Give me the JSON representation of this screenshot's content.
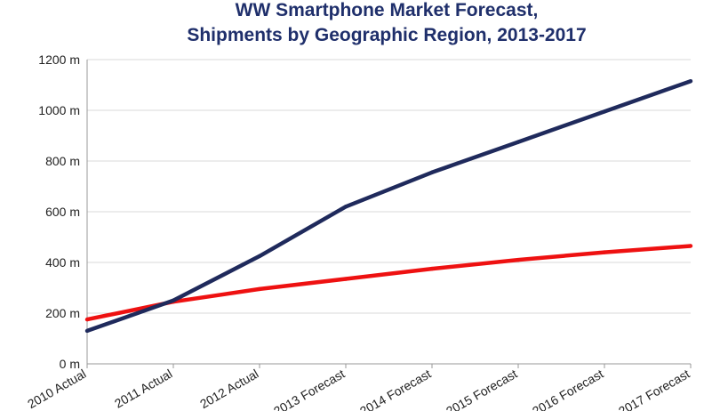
{
  "chart_data": {
    "type": "line",
    "title_lines": [
      "WW Smartphone Market Forecast,",
      "Shipments by Geographic Region, 2013-2017"
    ],
    "categories": [
      "2010 Actual",
      "2011 Actual",
      "2012 Actual",
      "2013 Forecast",
      "2014 Forecast",
      "2015 Forecast",
      "2016 Forecast",
      "2017 Forecast"
    ],
    "series": [
      {
        "values": [
          130,
          250,
          425,
          620,
          755,
          875,
          995,
          1115
        ],
        "color": "#1f2a5c"
      },
      {
        "values": [
          175,
          245,
          295,
          335,
          375,
          410,
          440,
          465
        ],
        "color": "#ee1111"
      }
    ],
    "ylim": [
      0,
      1200
    ],
    "yticks": [
      0,
      200,
      400,
      600,
      800,
      1000,
      1200
    ],
    "ytick_labels": [
      "0 m",
      "200 m",
      "400 m",
      "600 m",
      "800 m",
      "1000 m",
      "1200 m"
    ],
    "grid": true,
    "legend": "none"
  }
}
